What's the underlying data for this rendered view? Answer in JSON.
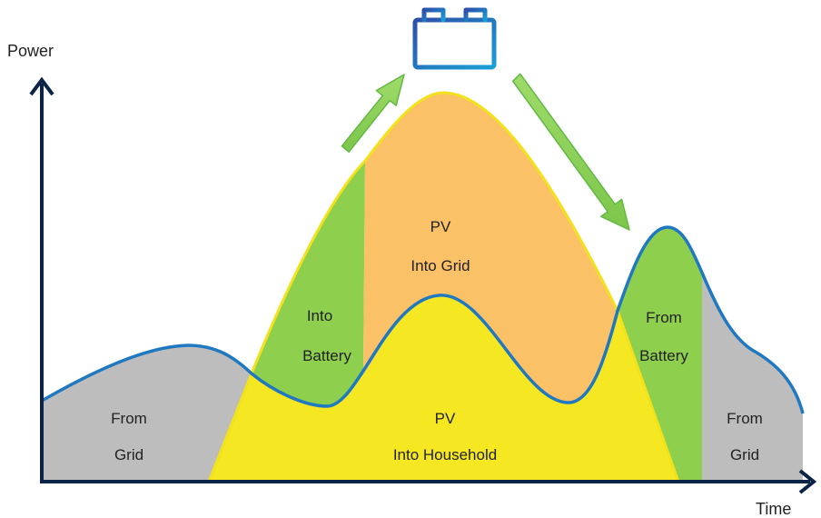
{
  "axes": {
    "y_label": "Power",
    "x_label": "Time"
  },
  "regions": {
    "from_grid_left": [
      "From",
      "Grid"
    ],
    "into_battery": [
      "Into",
      "Battery"
    ],
    "pv_into_grid": [
      "PV",
      "Into Grid"
    ],
    "pv_into_household": [
      "PV",
      "Into Household"
    ],
    "from_battery": [
      "From",
      "Battery"
    ],
    "from_grid_right": [
      "From",
      "Grid"
    ]
  },
  "colors": {
    "grid": "#BDBDBD",
    "battery": "#8ECF4E",
    "pv_grid": "#FBC166",
    "pv_household": "#F5E823",
    "pv_outline": "#F2E21C",
    "consumption_line": "#1F78C0",
    "axis": "#0B2346",
    "arrow_fill": "#8ED45B",
    "arrow_stroke": "#63B844",
    "battery_icon": "#1F6FBF"
  },
  "icons": {
    "battery": "battery-icon",
    "arrow_charge": "charge-arrow-icon",
    "arrow_discharge": "discharge-arrow-icon"
  }
}
